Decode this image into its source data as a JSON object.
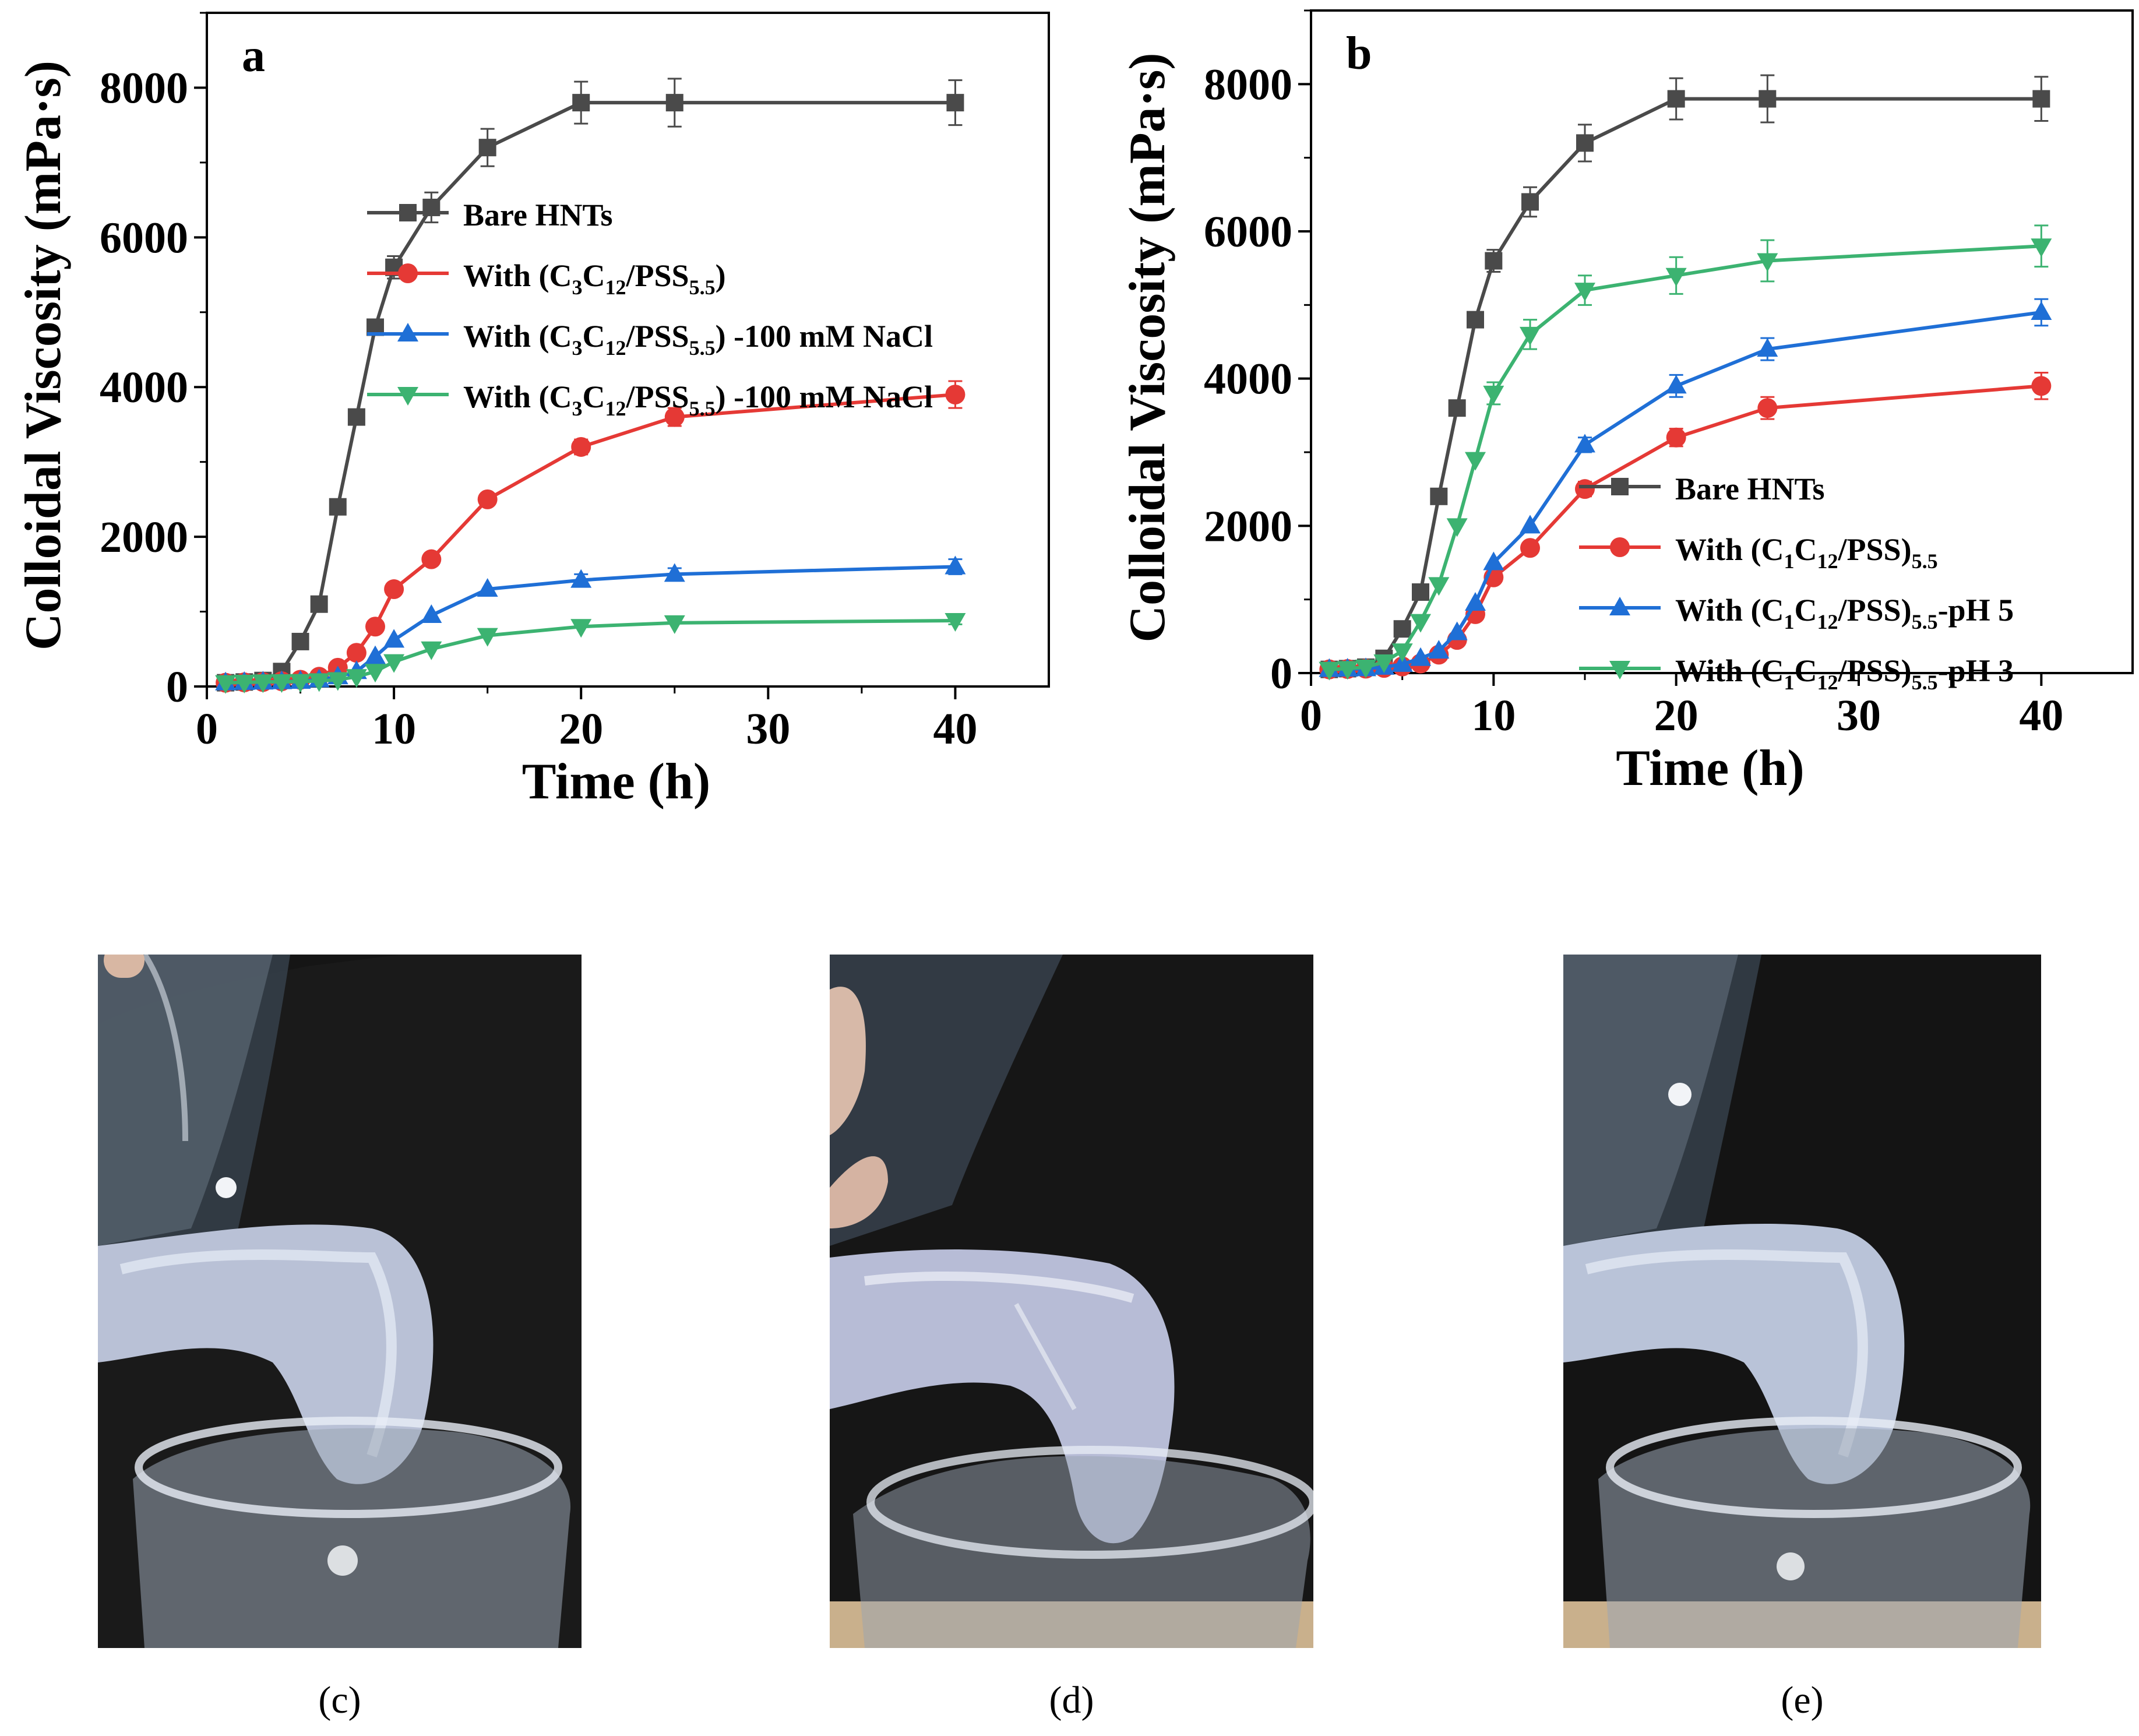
{
  "chart_data": [
    {
      "panel": "a",
      "type": "line",
      "panel_label": "a",
      "xlabel": "Time (h)",
      "ylabel": "Colloidal Viscosity (mPa·s)",
      "xlim": [
        0,
        45
      ],
      "ylim": [
        0,
        9000
      ],
      "xticks": [
        "0",
        "10",
        "20",
        "30",
        "40"
      ],
      "yticks": [
        "0",
        "2000",
        "4000",
        "6000",
        "8000"
      ],
      "x": [
        1,
        2,
        3,
        4,
        5,
        6,
        7,
        8,
        9,
        10,
        12,
        15,
        20,
        25,
        40
      ],
      "legend_position": "center-right",
      "series": [
        {
          "name": "Bare HNTs",
          "color": "#4a4a4a",
          "marker": "square",
          "values": [
            50,
            60,
            80,
            200,
            600,
            1100,
            2400,
            3600,
            4800,
            5600,
            6400,
            7200,
            7800,
            7800,
            7800
          ],
          "errors": [
            0,
            0,
            0,
            0,
            0,
            0,
            0,
            0,
            0,
            150,
            200,
            250,
            280,
            320,
            300
          ]
        },
        {
          "name": "With   (C3C12/PSS5.5)",
          "color": "#e53935",
          "marker": "circle",
          "values": [
            50,
            55,
            60,
            70,
            90,
            130,
            250,
            450,
            800,
            1300,
            1700,
            2500,
            3200,
            3600,
            3900
          ],
          "errors": [
            0,
            0,
            0,
            0,
            0,
            0,
            0,
            0,
            0,
            0,
            0,
            0,
            100,
            120,
            180
          ]
        },
        {
          "name": "With   (C3C12/PSS5.5)  -100 mM NaCl",
          "color": "#1f6fd6",
          "marker": "triangle-up",
          "values": [
            50,
            55,
            60,
            65,
            70,
            90,
            130,
            200,
            400,
            620,
            950,
            1300,
            1420,
            1500,
            1600
          ],
          "errors": [
            0,
            0,
            0,
            0,
            0,
            0,
            0,
            0,
            0,
            0,
            0,
            0,
            80,
            80,
            100
          ]
        },
        {
          "name": "With   (C3C12/PSS5.5)  -100 mM NaCl",
          "color": "#3cb371",
          "marker": "triangle-down",
          "values": [
            50,
            55,
            60,
            62,
            65,
            75,
            90,
            130,
            200,
            330,
            500,
            680,
            800,
            850,
            880
          ],
          "errors": [
            0,
            0,
            0,
            0,
            0,
            0,
            0,
            0,
            0,
            0,
            0,
            0,
            0,
            0,
            50
          ]
        }
      ],
      "legend_labels": [
        {
          "pre": "Bare HNTs",
          "parts": []
        },
        {
          "pre": "With   (C",
          "parts": [
            [
              "3",
              "sub"
            ],
            [
              "C",
              "n"
            ],
            [
              "12",
              "sub"
            ],
            [
              "/PSS",
              "n"
            ],
            [
              "5.5",
              "sub"
            ],
            [
              ")",
              "n"
            ]
          ]
        },
        {
          "pre": "With   (C",
          "parts": [
            [
              "3",
              "sub"
            ],
            [
              "C",
              "n"
            ],
            [
              "12",
              "sub"
            ],
            [
              "/PSS",
              "n"
            ],
            [
              "5.5",
              "sub"
            ],
            [
              ")  -100 mM NaCl",
              "n"
            ]
          ]
        },
        {
          "pre": "With   (C",
          "parts": [
            [
              "3",
              "sub"
            ],
            [
              "C",
              "n"
            ],
            [
              "12",
              "sub"
            ],
            [
              "/PSS",
              "n"
            ],
            [
              "5.5",
              "sub"
            ],
            [
              ")  -100 mM NaCl",
              "n"
            ]
          ]
        }
      ]
    },
    {
      "panel": "b",
      "type": "line",
      "panel_label": "b",
      "xlabel": "Time   (h)",
      "ylabel": "Colloidal Viscosity (mPa·s)",
      "xlim": [
        0,
        45
      ],
      "ylim": [
        0,
        9000
      ],
      "xticks": [
        "0",
        "10",
        "20",
        "30",
        "40"
      ],
      "yticks": [
        "0",
        "2000",
        "4000",
        "6000",
        "8000"
      ],
      "x": [
        1,
        2,
        3,
        4,
        5,
        6,
        7,
        8,
        9,
        10,
        12,
        15,
        20,
        25,
        40
      ],
      "legend_position": "lower-right",
      "series": [
        {
          "name": "Bare HNTs",
          "color": "#4a4a4a",
          "marker": "square",
          "values": [
            50,
            60,
            80,
            200,
            600,
            1100,
            2400,
            3600,
            4800,
            5600,
            6400,
            7200,
            7800,
            7800,
            7800
          ],
          "errors": [
            0,
            0,
            0,
            0,
            0,
            0,
            0,
            0,
            0,
            150,
            200,
            250,
            280,
            320,
            300
          ]
        },
        {
          "name": "With (C1C12/PSS)5.5",
          "color": "#e53935",
          "marker": "circle",
          "values": [
            50,
            55,
            60,
            70,
            90,
            130,
            250,
            450,
            800,
            1300,
            1700,
            2500,
            3200,
            3600,
            3900
          ],
          "errors": [
            0,
            0,
            0,
            0,
            0,
            0,
            0,
            0,
            0,
            0,
            0,
            100,
            120,
            150,
            180
          ]
        },
        {
          "name": "With (C1C12/PSS)5.5-pH 5",
          "color": "#1f6fd6",
          "marker": "triangle-up",
          "values": [
            50,
            55,
            60,
            80,
            120,
            200,
            300,
            550,
            950,
            1500,
            2000,
            3100,
            3900,
            4400,
            4900
          ],
          "errors": [
            0,
            0,
            0,
            0,
            0,
            0,
            0,
            0,
            0,
            0,
            0,
            100,
            150,
            150,
            180
          ]
        },
        {
          "name": "With (C1C12/PSS)5.5-pH 3",
          "color": "#3cb371",
          "marker": "triangle-down",
          "values": [
            50,
            60,
            80,
            150,
            300,
            700,
            1200,
            2000,
            2900,
            3800,
            4600,
            5200,
            5400,
            5600,
            5800
          ],
          "errors": [
            0,
            0,
            0,
            0,
            0,
            0,
            0,
            0,
            0,
            150,
            200,
            200,
            250,
            280,
            280
          ]
        }
      ],
      "legend_labels": [
        {
          "pre": "Bare HNTs",
          "parts": []
        },
        {
          "pre": "With (C",
          "parts": [
            [
              "1",
              "sub"
            ],
            [
              "C",
              "n"
            ],
            [
              "12",
              "sub"
            ],
            [
              "/PSS)",
              "n"
            ],
            [
              "5.5",
              "sub"
            ]
          ]
        },
        {
          "pre": "With (C",
          "parts": [
            [
              "1",
              "sub"
            ],
            [
              "C",
              "n"
            ],
            [
              "12",
              "sub"
            ],
            [
              "/PSS)",
              "n"
            ],
            [
              "5.5",
              "sub"
            ],
            [
              "-pH 5",
              "n"
            ]
          ]
        },
        {
          "pre": "With (C",
          "parts": [
            [
              "1",
              "sub"
            ],
            [
              "C",
              "n"
            ],
            [
              "12",
              "sub"
            ],
            [
              "/PSS)",
              "n"
            ],
            [
              "5.5",
              "sub"
            ],
            [
              "-pH 3",
              "n"
            ]
          ]
        }
      ]
    }
  ],
  "photos": [
    {
      "caption": "(c)"
    },
    {
      "caption": "(d)"
    },
    {
      "caption": "(e)"
    }
  ]
}
